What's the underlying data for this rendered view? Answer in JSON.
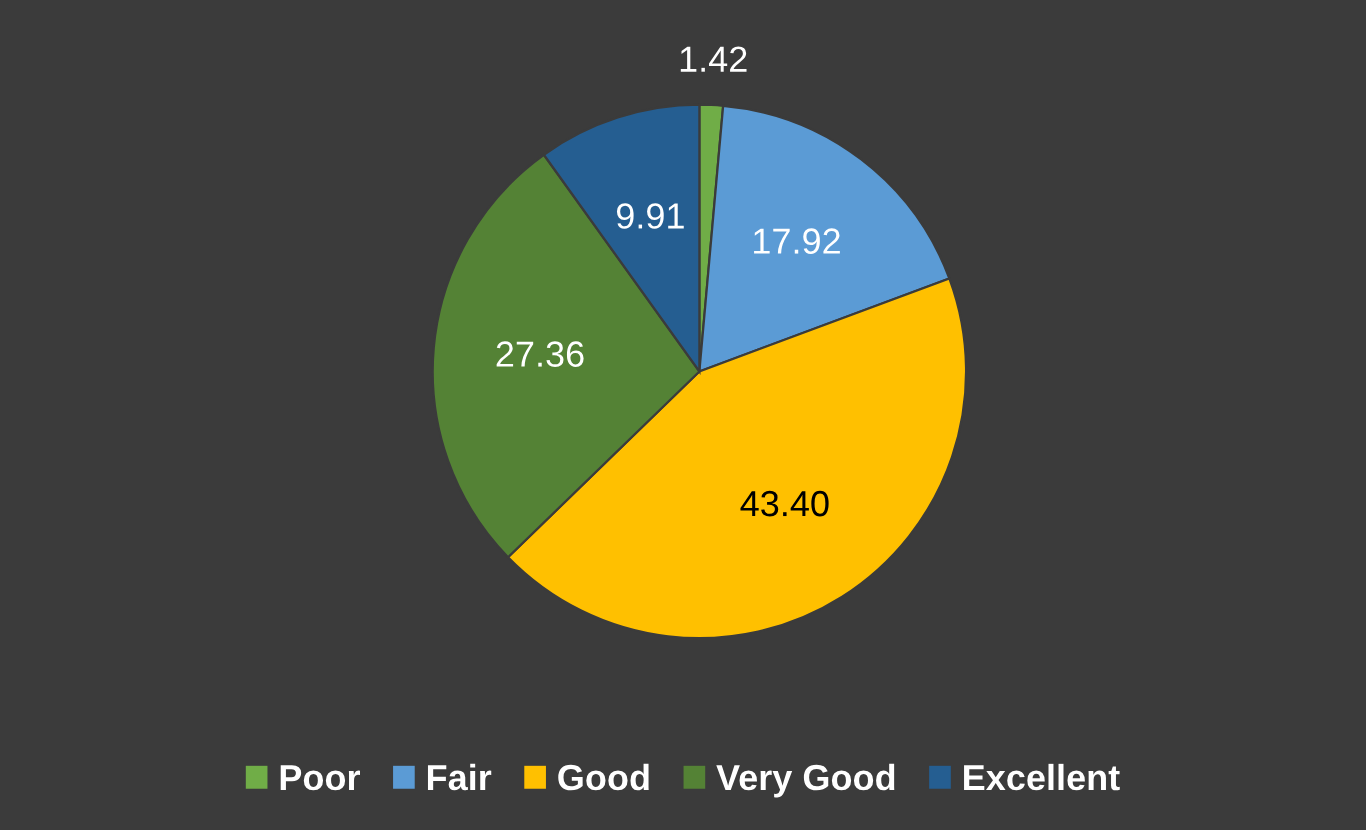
{
  "chart_data": {
    "type": "pie",
    "categories": [
      "Poor",
      "Fair",
      "Good",
      "Very Good",
      "Excellent"
    ],
    "values": [
      1.42,
      17.92,
      43.4,
      27.36,
      9.91
    ],
    "value_labels": [
      "1.42",
      "17.92",
      "43.40",
      "27.36",
      "9.91"
    ],
    "colors": [
      "#70ad47",
      "#5b9bd5",
      "#ffc000",
      "#548235",
      "#255e91"
    ],
    "legend": "bottom"
  }
}
